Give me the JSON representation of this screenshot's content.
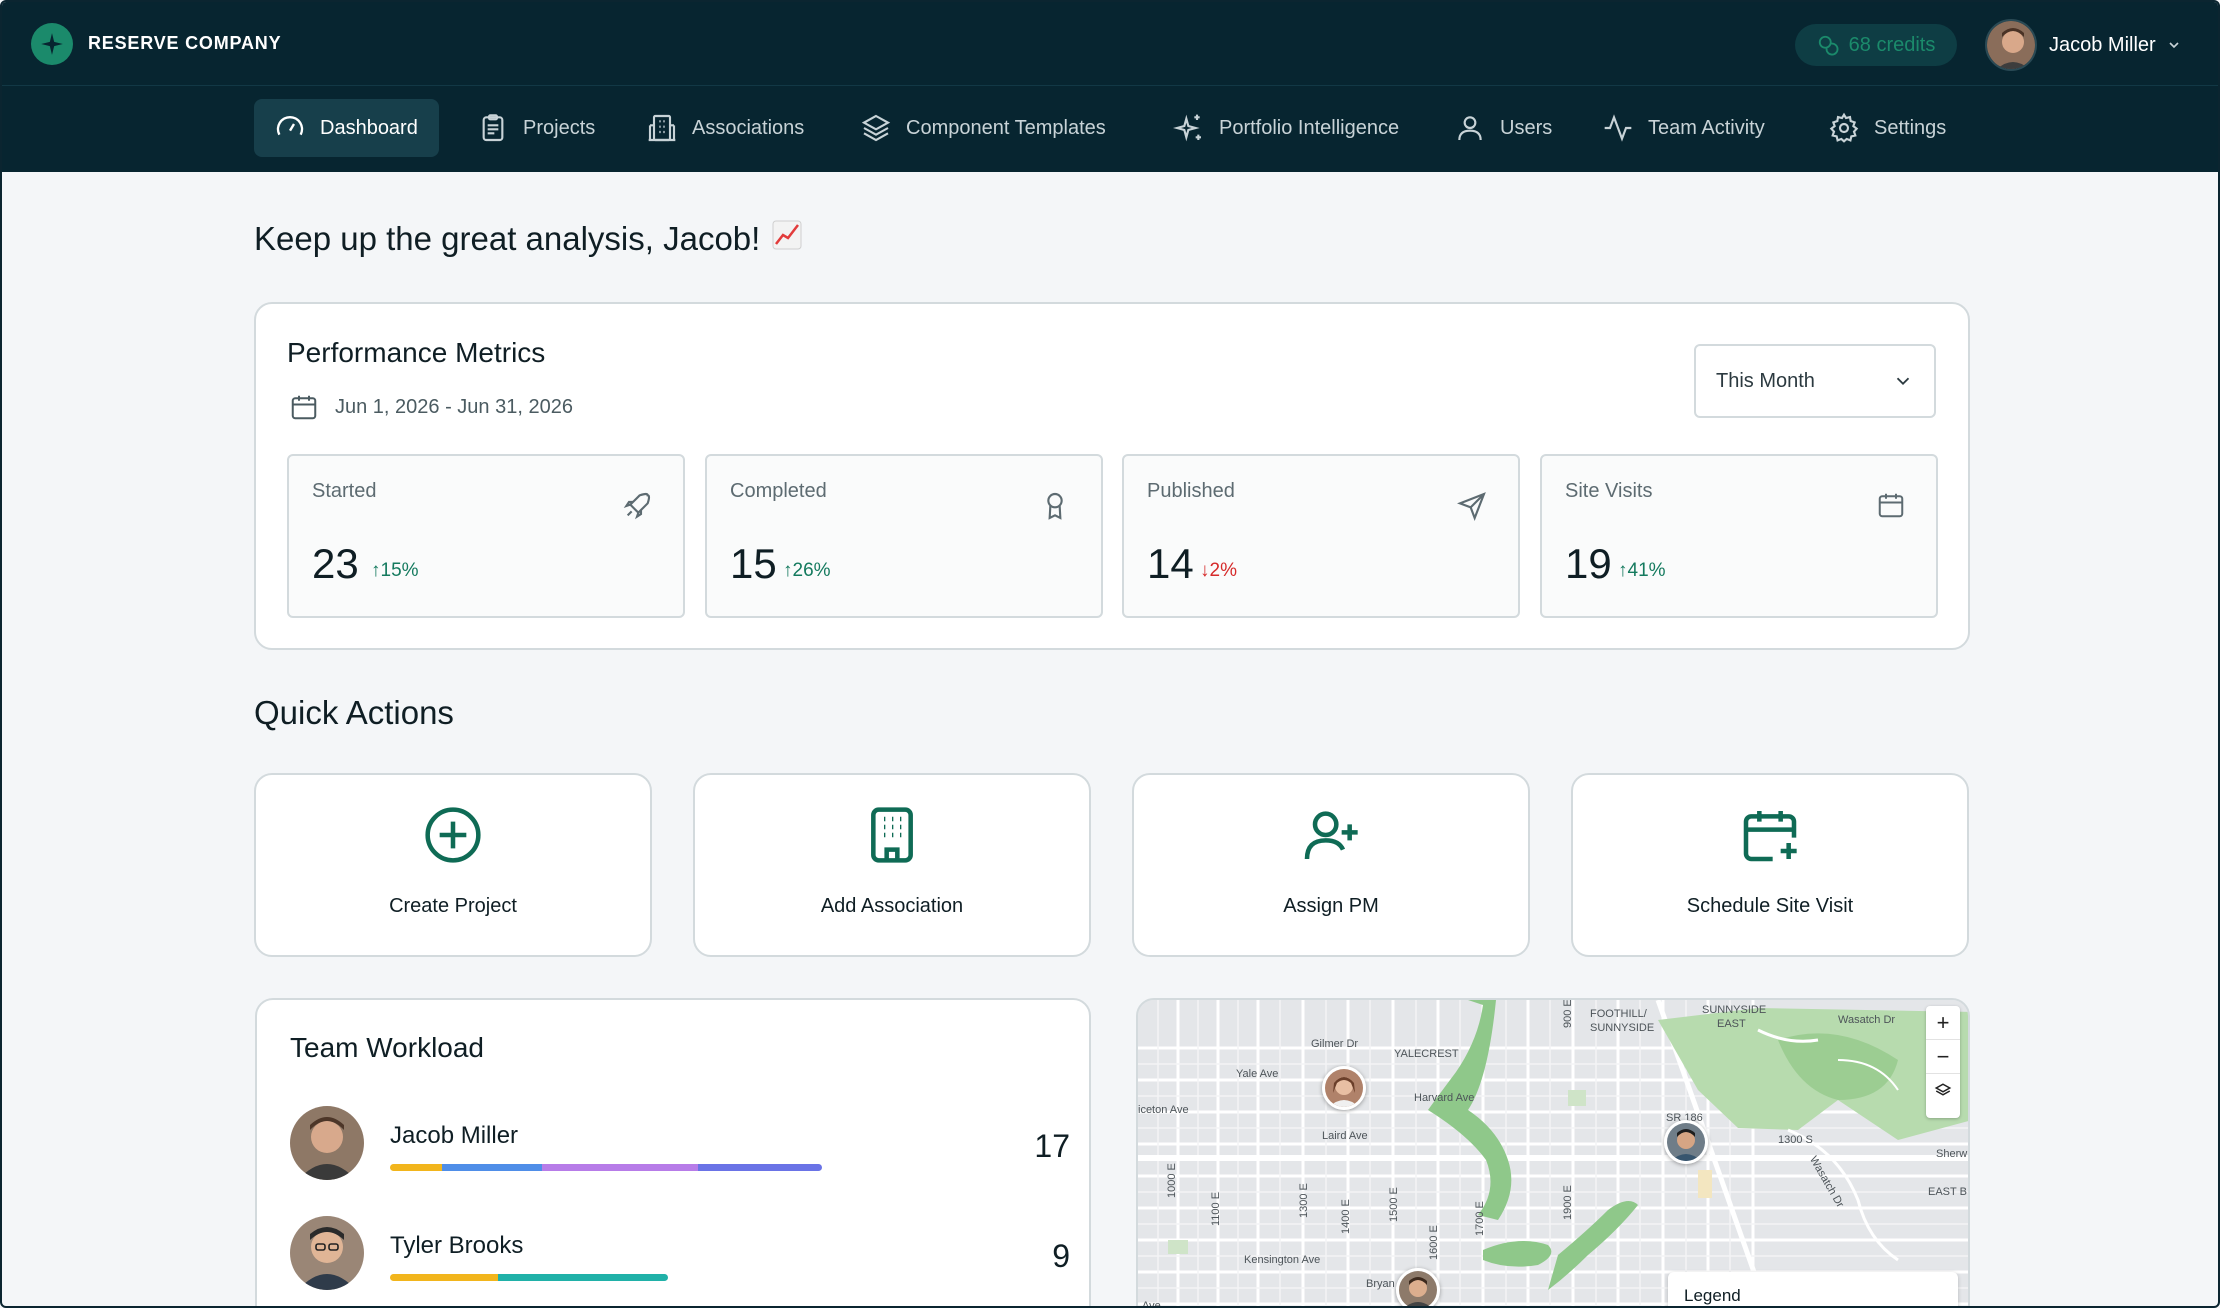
{
  "brand": {
    "name": "RESERVE COMPANY"
  },
  "header": {
    "credits_label": "68 credits",
    "user_name": "Jacob Miller"
  },
  "nav": {
    "items": [
      {
        "label": "Dashboard",
        "icon": "gauge-icon",
        "active": true
      },
      {
        "label": "Projects",
        "icon": "clipboard-icon"
      },
      {
        "label": "Associations",
        "icon": "building-icon"
      },
      {
        "label": "Component Templates",
        "icon": "layers-icon"
      },
      {
        "label": "Portfolio Intelligence",
        "icon": "sparkles-icon"
      },
      {
        "label": "Users",
        "icon": "user-icon"
      },
      {
        "label": "Team Activity",
        "icon": "activity-icon"
      },
      {
        "label": "Settings",
        "icon": "gear-icon"
      }
    ]
  },
  "greeting": {
    "text": "Keep up the great analysis, Jacob!",
    "emoji": "📈"
  },
  "metrics": {
    "title": "Performance Metrics",
    "date_range": "Jun 1, 2026 - Jun 31, 2026",
    "period_select": "This Month",
    "stats": [
      {
        "label": "Started",
        "value": "23",
        "change": "15%",
        "direction": "up",
        "icon": "rocket-icon"
      },
      {
        "label": "Completed",
        "value": "15",
        "change": "26%",
        "direction": "up",
        "icon": "award-icon"
      },
      {
        "label": "Published",
        "value": "14",
        "change": "2%",
        "direction": "down",
        "icon": "send-icon"
      },
      {
        "label": "Site Visits",
        "value": "19",
        "change": "41%",
        "direction": "up",
        "icon": "calendar-icon"
      }
    ]
  },
  "quick_actions": {
    "title": "Quick Actions",
    "items": [
      {
        "label": "Create Project",
        "icon": "plus-circle-icon"
      },
      {
        "label": "Add Association",
        "icon": "building-icon"
      },
      {
        "label": "Assign PM",
        "icon": "user-plus-icon"
      },
      {
        "label": "Schedule Site Visit",
        "icon": "calendar-plus-icon"
      }
    ]
  },
  "workload": {
    "title": "Team Workload",
    "members": [
      {
        "name": "Jacob Miller",
        "count": "17"
      },
      {
        "name": "Tyler Brooks",
        "count": "9"
      }
    ]
  },
  "map": {
    "labels": {
      "foothill": "FOOTHILL/",
      "sunnyside": "SUNNYSIDE",
      "sunnyside_east": "SUNNYSIDE",
      "east": "EAST",
      "wasatch_dr": "Wasatch Dr",
      "gilmer_dr": "Gilmer Dr",
      "yalecrest": "YALECREST",
      "yale_ave": "Yale Ave",
      "harvard_ave": "Harvard Ave",
      "laird_ave": "Laird Ave",
      "princeton_ave": "iceton Ave",
      "sr186": "SR 186",
      "s1300": "1300 S",
      "sherwood": "Sherw",
      "east_b": "EAST B",
      "wasatch_dr2": "Wasatch Dr",
      "kensington": "Kensington Ave",
      "bryan": "Bryan",
      "ave": "Ave",
      "e900": "900 E",
      "e1000": "1000 E",
      "e1100": "1100 E",
      "e1300": "1300 E",
      "e1400": "1400 E",
      "e1500": "1500 E",
      "e1600": "1600 E",
      "e1700": "1700 E",
      "e1900": "1900 E"
    },
    "legend_title": "Legend"
  },
  "colors": {
    "accent": "#1b8a6b",
    "header_bg": "#072530",
    "up": "#147a5e",
    "down": "#d62a2a"
  }
}
